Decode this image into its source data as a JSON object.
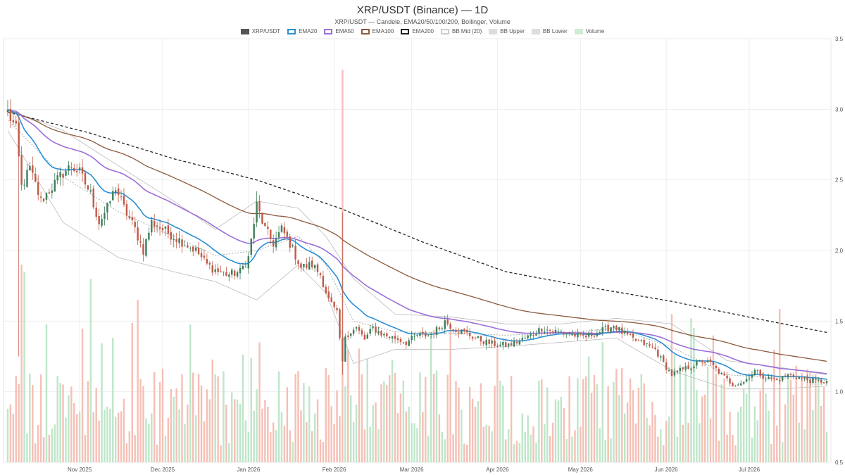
{
  "chart_data": {
    "type": "candlestick",
    "title": "XRP/USDT (Binance) — 1D",
    "subtitle": "XRP/USDT — Candele, EMA20/50/100/200, Bollinger, Volume",
    "legend": [
      {
        "label": "XRP/USDT",
        "color": "#555555",
        "style": "fill"
      },
      {
        "label": "EMA20",
        "color": "#2a8fd6",
        "style": "line"
      },
      {
        "label": "EMA50",
        "color": "#9b6fd9",
        "style": "line"
      },
      {
        "label": "EMA100",
        "color": "#8b5a3c",
        "style": "line"
      },
      {
        "label": "EMA200",
        "color": "#222222",
        "style": "dash"
      },
      {
        "label": "BB Mid (20)",
        "color": "#cccccc",
        "style": "dash"
      },
      {
        "label": "BB Upper",
        "color": "#dddddd",
        "style": "fill"
      },
      {
        "label": "BB Lower",
        "color": "#dddddd",
        "style": "fill"
      },
      {
        "label": "Volume",
        "color": "#cfead7",
        "style": "fill"
      }
    ],
    "xlabels": [
      "Nov 2025",
      "Dec 2025",
      "Jan 2026",
      "Feb 2026",
      "Mar 2026",
      "Apr 2026",
      "May 2026",
      "Jun 2026",
      "Jul 2026"
    ],
    "yticks": [
      "0.5",
      "1.0",
      "1.5",
      "2.0",
      "2.5",
      "3.0",
      "3.5"
    ],
    "ylim": [
      0.5,
      3.5
    ],
    "x_start": "2025-10-06",
    "num_days": 297,
    "close_anchors": [
      [
        0,
        2.98
      ],
      [
        3,
        2.85
      ],
      [
        5,
        2.45
      ],
      [
        8,
        2.58
      ],
      [
        12,
        2.35
      ],
      [
        16,
        2.45
      ],
      [
        20,
        2.55
      ],
      [
        23,
        2.6
      ],
      [
        26,
        2.55
      ],
      [
        30,
        2.4
      ],
      [
        33,
        2.2
      ],
      [
        36,
        2.3
      ],
      [
        39,
        2.45
      ],
      [
        42,
        2.3
      ],
      [
        46,
        2.15
      ],
      [
        49,
        2.0
      ],
      [
        52,
        2.2
      ],
      [
        56,
        2.15
      ],
      [
        60,
        2.1
      ],
      [
        64,
        2.05
      ],
      [
        68,
        2.0
      ],
      [
        72,
        1.9
      ],
      [
        76,
        1.85
      ],
      [
        80,
        1.83
      ],
      [
        84,
        1.85
      ],
      [
        87,
        1.95
      ],
      [
        90,
        2.32
      ],
      [
        93,
        2.15
      ],
      [
        96,
        2.05
      ],
      [
        99,
        2.15
      ],
      [
        102,
        2.05
      ],
      [
        106,
        1.88
      ],
      [
        110,
        1.9
      ],
      [
        113,
        1.83
      ],
      [
        116,
        1.65
      ],
      [
        119,
        1.55
      ],
      [
        121,
        1.2
      ],
      [
        122,
        1.4
      ],
      [
        126,
        1.45
      ],
      [
        129,
        1.37
      ],
      [
        132,
        1.45
      ],
      [
        136,
        1.4
      ],
      [
        140,
        1.38
      ],
      [
        144,
        1.35
      ],
      [
        148,
        1.4
      ],
      [
        152,
        1.4
      ],
      [
        156,
        1.45
      ],
      [
        158,
        1.5
      ],
      [
        161,
        1.45
      ],
      [
        165,
        1.42
      ],
      [
        169,
        1.38
      ],
      [
        173,
        1.35
      ],
      [
        177,
        1.33
      ],
      [
        181,
        1.33
      ],
      [
        185,
        1.36
      ],
      [
        189,
        1.4
      ],
      [
        193,
        1.45
      ],
      [
        197,
        1.43
      ],
      [
        201,
        1.42
      ],
      [
        205,
        1.4
      ],
      [
        209,
        1.39
      ],
      [
        213,
        1.42
      ],
      [
        217,
        1.45
      ],
      [
        219,
        1.47
      ],
      [
        222,
        1.42
      ],
      [
        226,
        1.37
      ],
      [
        230,
        1.34
      ],
      [
        234,
        1.3
      ],
      [
        237,
        1.2
      ],
      [
        240,
        1.12
      ],
      [
        243,
        1.15
      ],
      [
        247,
        1.18
      ],
      [
        251,
        1.22
      ],
      [
        254,
        1.2
      ],
      [
        258,
        1.12
      ],
      [
        262,
        1.05
      ],
      [
        266,
        1.07
      ],
      [
        270,
        1.15
      ],
      [
        274,
        1.1
      ],
      [
        278,
        1.08
      ],
      [
        282,
        1.12
      ],
      [
        286,
        1.1
      ],
      [
        290,
        1.08
      ],
      [
        296,
        1.07
      ]
    ],
    "ema200_anchors": [
      [
        0,
        2.98
      ],
      [
        30,
        2.83
      ],
      [
        60,
        2.65
      ],
      [
        90,
        2.5
      ],
      [
        120,
        2.3
      ],
      [
        150,
        2.06
      ],
      [
        180,
        1.85
      ],
      [
        210,
        1.74
      ],
      [
        240,
        1.64
      ],
      [
        270,
        1.52
      ],
      [
        296,
        1.42
      ]
    ],
    "bb_upper_anchors": [
      [
        0,
        3.0
      ],
      [
        20,
        2.85
      ],
      [
        40,
        2.6
      ],
      [
        60,
        2.35
      ],
      [
        75,
        2.15
      ],
      [
        90,
        2.35
      ],
      [
        105,
        2.3
      ],
      [
        115,
        2.1
      ],
      [
        125,
        1.8
      ],
      [
        140,
        1.55
      ],
      [
        160,
        1.53
      ],
      [
        180,
        1.48
      ],
      [
        200,
        1.48
      ],
      [
        220,
        1.52
      ],
      [
        240,
        1.48
      ],
      [
        260,
        1.22
      ],
      [
        280,
        1.17
      ],
      [
        296,
        1.12
      ]
    ],
    "bb_lower_anchors": [
      [
        0,
        2.85
      ],
      [
        20,
        2.2
      ],
      [
        40,
        1.95
      ],
      [
        60,
        1.85
      ],
      [
        75,
        1.78
      ],
      [
        90,
        1.65
      ],
      [
        105,
        1.9
      ],
      [
        115,
        1.7
      ],
      [
        125,
        1.2
      ],
      [
        140,
        1.3
      ],
      [
        160,
        1.3
      ],
      [
        180,
        1.32
      ],
      [
        200,
        1.35
      ],
      [
        220,
        1.38
      ],
      [
        240,
        1.15
      ],
      [
        260,
        1.02
      ],
      [
        280,
        1.02
      ],
      [
        296,
        1.04
      ]
    ],
    "volume_spikes": [
      [
        121,
        3.28
      ],
      [
        5,
        1.9
      ],
      [
        6,
        1.85
      ],
      [
        30,
        1.8
      ],
      [
        47,
        1.65
      ],
      [
        91,
        1.35
      ],
      [
        123,
        1.3
      ],
      [
        240,
        1.55
      ],
      [
        247,
        1.52
      ],
      [
        153,
        1.4
      ],
      [
        160,
        1.45
      ],
      [
        210,
        1.25
      ]
    ]
  },
  "colors": {
    "up": "#3f7f5c",
    "down": "#c05a48",
    "vol_up": "#bfe6c9",
    "vol_down": "#f5c0b6",
    "ema20": "#2a8fd6",
    "ema50": "#9b6fd9",
    "ema100": "#8b5a3c",
    "ema200": "#222222",
    "bb": "#bbbbbb",
    "grid": "#eeeeee"
  }
}
